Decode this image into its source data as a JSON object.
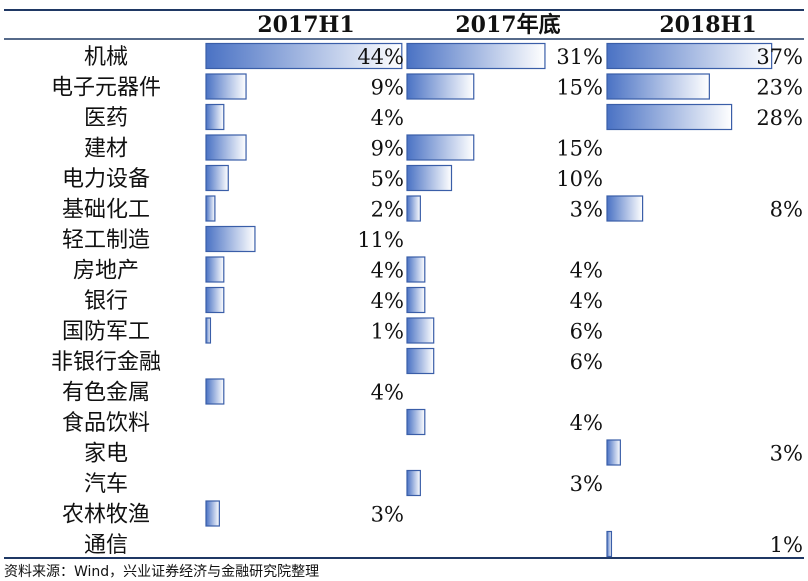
{
  "chart_data": {
    "type": "bar",
    "headers": [
      "2017H1",
      "2017年底",
      "2018H1"
    ],
    "categories": [
      "机械",
      "电子元器件",
      "医药",
      "建材",
      "电力设备",
      "基础化工",
      "轻工制造",
      "房地产",
      "银行",
      "国防军工",
      "非银行金融",
      "有色金属",
      "食品饮料",
      "家电",
      "汽车",
      "农林牧渔",
      "通信"
    ],
    "series": [
      {
        "name": "2017H1",
        "values": [
          44,
          9,
          4,
          9,
          5,
          2,
          11,
          4,
          4,
          1,
          null,
          4,
          null,
          null,
          null,
          3,
          null
        ],
        "labels": [
          "44%",
          "9%",
          "4%",
          "9%",
          "5%",
          "2%",
          "11%",
          "4%",
          "4%",
          "1%",
          "",
          "4%",
          "",
          "",
          "",
          "3%",
          ""
        ]
      },
      {
        "name": "2017年底",
        "values": [
          31,
          15,
          null,
          15,
          10,
          3,
          null,
          4,
          4,
          6,
          6,
          null,
          4,
          null,
          3,
          null,
          null
        ],
        "labels": [
          "31%",
          "15%",
          "",
          "15%",
          "10%",
          "3%",
          "",
          "4%",
          "4%",
          "6%",
          "6%",
          "",
          "4%",
          "",
          "3%",
          "",
          ""
        ]
      },
      {
        "name": "2018H1",
        "values": [
          37,
          23,
          28,
          null,
          null,
          8,
          null,
          null,
          null,
          null,
          null,
          null,
          null,
          3,
          null,
          null,
          1
        ],
        "labels": [
          "37%",
          "23%",
          "28%",
          "",
          "",
          "8%",
          "",
          "",
          "",
          "",
          "",
          "",
          "",
          "3%",
          "",
          "",
          "1%"
        ]
      }
    ],
    "xlim": [
      0,
      44
    ],
    "grid": false,
    "legend": "none"
  },
  "source_note": "资料来源：Wind，兴业证券经济与金融研究院整理",
  "colors": {
    "bar_dark": "#4a72c4",
    "bar_light": "#ffffff",
    "bar_stroke": "#3a5ea8",
    "rule": "#1f3864"
  }
}
